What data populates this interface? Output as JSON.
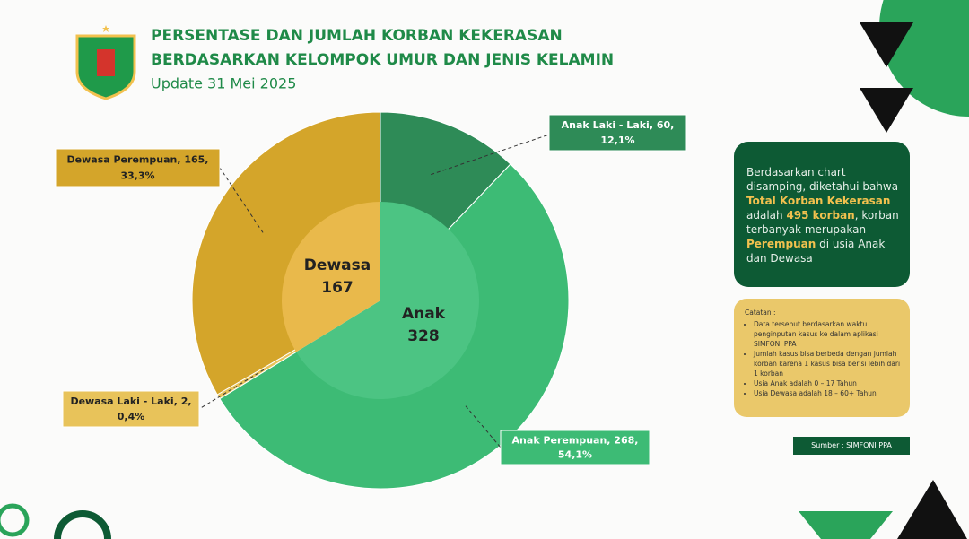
{
  "header": {
    "title_lines": [
      "PERSENTASE DAN JUMLAH KORBAN KEKERASAN",
      "BERDASARKAN KELOMPOK UMUR DAN JENIS KELAMIN"
    ],
    "update": "Update 31 Mei 2025"
  },
  "chart_data": {
    "type": "sunburst",
    "inner": {
      "categories": [
        "Anak",
        "Dewasa"
      ],
      "values": [
        328,
        167
      ],
      "colors": [
        "#4cc483",
        "#e9b94b"
      ]
    },
    "outer": {
      "values": [
        60,
        268,
        2,
        165
      ],
      "value_labels": [
        "Anak Laki - Laki, 60,",
        "Anak Perempuan, 268,",
        "Dewasa Laki - Laki, 2,",
        "Dewasa Perempuan, 165,"
      ],
      "percent_labels": [
        "12,1%",
        "54,1%",
        "0,4%",
        "33,3%"
      ],
      "colors": [
        "#2e8b57",
        "#3dbb75",
        "#e8c35a",
        "#d4a52a"
      ]
    }
  },
  "info_box": {
    "segments": [
      {
        "text": "Berdasarkan chart disamping, diketahui bahwa ",
        "highlight": false
      },
      {
        "text": "Total Korban Kekerasan",
        "highlight": true
      },
      {
        "text": " adalah ",
        "highlight": false
      },
      {
        "text": "495 korban",
        "highlight": true
      },
      {
        "text": ", korban terbanyak merupakan ",
        "highlight": false
      },
      {
        "text": "Perempuan",
        "highlight": true
      },
      {
        "text": " di usia Anak dan Dewasa",
        "highlight": false
      }
    ]
  },
  "notes": {
    "title": "Catatan :",
    "items": [
      "Data tersebut berdasarkan waktu penginputan kasus ke dalam aplikasi SIMFONI PPA",
      "Jumlah kasus bisa berbeda dengan jumlah korban karena 1 kasus bisa berisi lebih dari 1 korban",
      "Usia Anak adalah 0 – 17 Tahun",
      "Usia Dewasa adalah 18 – 60+ Tahun"
    ]
  },
  "source": "Sumber : SIMFONI PPA"
}
